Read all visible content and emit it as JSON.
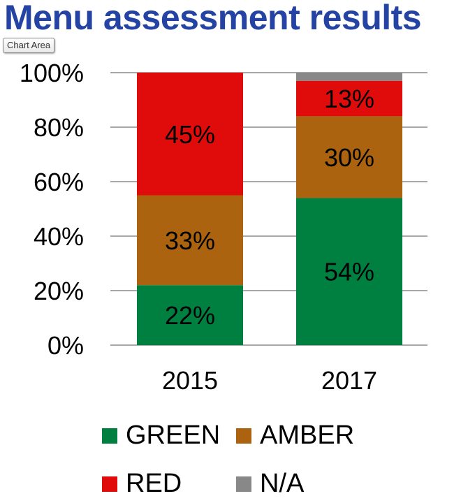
{
  "title": "Menu assessment results",
  "tooltip": "Chart Area",
  "chart_data": {
    "type": "bar",
    "stacked": true,
    "categories": [
      "2015",
      "2017"
    ],
    "series": [
      {
        "name": "GREEN",
        "color": "#008040",
        "values": [
          22,
          54
        ],
        "labels": [
          "22%",
          "54%"
        ]
      },
      {
        "name": "AMBER",
        "color": "#ab6310",
        "values": [
          33,
          30
        ],
        "labels": [
          "33%",
          "30%"
        ]
      },
      {
        "name": "RED",
        "color": "#e00c0c",
        "values": [
          45,
          13
        ],
        "labels": [
          "45%",
          "13%"
        ]
      },
      {
        "name": "N/A",
        "color": "#888888",
        "values": [
          0,
          3
        ],
        "labels": [
          "",
          ""
        ]
      }
    ],
    "ylim": [
      0,
      100
    ],
    "yticks": [
      {
        "value": 0,
        "label": "0%"
      },
      {
        "value": 20,
        "label": "20%"
      },
      {
        "value": 40,
        "label": "40%"
      },
      {
        "value": 60,
        "label": "60%"
      },
      {
        "value": 80,
        "label": "80%"
      },
      {
        "value": 100,
        "label": "100%"
      }
    ],
    "grid": true,
    "legend": "bottom"
  }
}
